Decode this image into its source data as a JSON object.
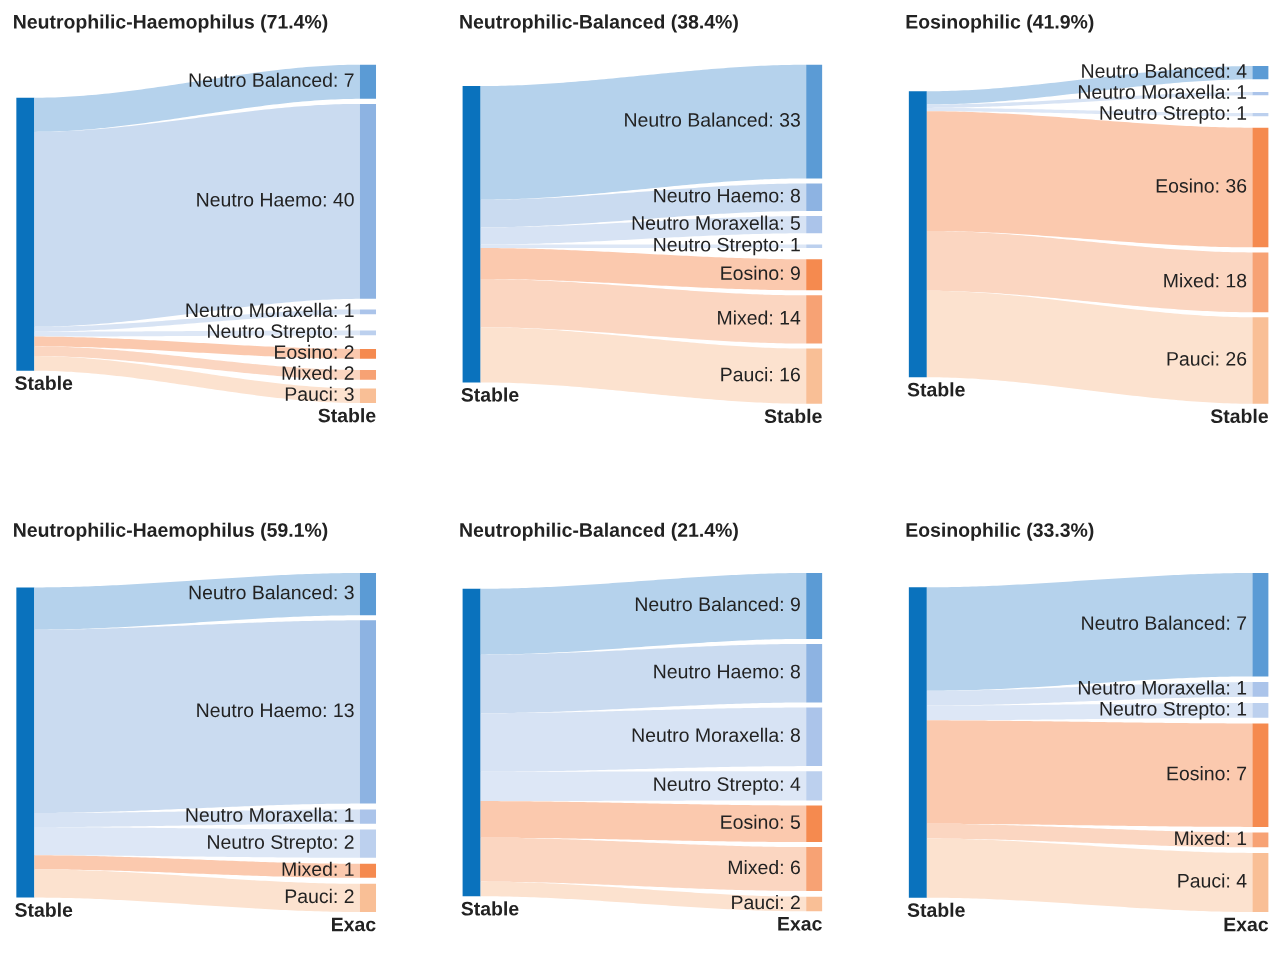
{
  "chart_data": [
    {
      "type": "other",
      "title": "Neutrophilic-Haemophilus (71.4%)",
      "categories": [
        "Neutro Balanced",
        "Neutro Haemo",
        "Neutro Moraxella",
        "Neutro Strepto",
        "Eosino",
        "Mixed",
        "Pauci"
      ],
      "colors": [
        "#5b9bd5",
        "#8db3e2",
        "#abc4ea",
        "#bcd0ee",
        "#f58a4f",
        "#f7a274",
        "#f9bf96"
      ],
      "series": [
        {
          "name": "Stable",
          "color": "#0a72bd",
          "colors": [
            "#b5d2ec",
            "#cadbf0",
            "#d7e3f4",
            "#dde7f6",
            "#fbc9ae",
            "#fbd6c1",
            "#fce2cf"
          ],
          "values": [
            7,
            40,
            1,
            1,
            2,
            2,
            3
          ],
          "value_labels": [
            ": 7",
            ": 40",
            ": 1",
            ": 1",
            ": 2",
            ": 2",
            ": 3"
          ]
        }
      ],
      "annotations": [
        "Stable"
      ]
    },
    {
      "type": "other",
      "title": "Neutrophilic-Balanced (38.4%)",
      "categories": [
        "Neutro Balanced",
        "Neutro Haemo",
        "Neutro Moraxella",
        "Neutro Strepto",
        "Eosino",
        "Mixed",
        "Pauci"
      ],
      "colors": [
        "#5b9bd5",
        "#8db3e2",
        "#abc4ea",
        "#bcd0ee",
        "#f58a4f",
        "#f7a274",
        "#f9bf96"
      ],
      "series": [
        {
          "name": "Stable",
          "color": "#0a72bd",
          "colors": [
            "#b5d2ec",
            "#cadbf0",
            "#d7e3f4",
            "#dde7f6",
            "#fbc9ae",
            "#fbd6c1",
            "#fce2cf"
          ],
          "values": [
            33,
            8,
            5,
            1,
            9,
            14,
            16
          ],
          "value_labels": [
            ": 33",
            ": 8",
            ": 5",
            ": 1",
            ": 9",
            ": 14",
            ": 16"
          ]
        }
      ],
      "annotations": [
        "Stable"
      ]
    },
    {
      "type": "other",
      "title": "Eosinophilic (41.9%)",
      "categories": [
        "Neutro Balanced",
        "Neutro Moraxella",
        "Neutro Strepto",
        "Eosino",
        "Mixed",
        "Pauci"
      ],
      "colors": [
        "#5b9bd5",
        "#abc4ea",
        "#bcd0ee",
        "#f58a4f",
        "#f7a274",
        "#f9bf96"
      ],
      "series": [
        {
          "name": "Stable",
          "color": "#0a72bd",
          "colors": [
            "#b5d2ec",
            "#d7e3f4",
            "#dde7f6",
            "#fbc9ae",
            "#fbd6c1",
            "#fce2cf"
          ],
          "values": [
            4,
            1,
            1,
            36,
            18,
            26
          ],
          "value_labels": [
            ": 4",
            ": 1",
            ": 1",
            ": 36",
            ": 18",
            ": 26"
          ]
        }
      ],
      "annotations": [
        "Stable"
      ]
    },
    {
      "type": "other",
      "title": "Neutrophilic-Haemophilus (59.1%)",
      "categories": [
        "Neutro Balanced",
        "Neutro Haemo",
        "Neutro Moraxella",
        "Neutro Strepto",
        "Mixed",
        "Pauci"
      ],
      "colors": [
        "#5b9bd5",
        "#8db3e2",
        "#abc4ea",
        "#bcd0ee",
        "#f58a4f",
        "#f9bf96"
      ],
      "series": [
        {
          "name": "Stable",
          "color": "#0a72bd",
          "colors": [
            "#b5d2ec",
            "#cadbf0",
            "#d7e3f4",
            "#dde7f6",
            "#fbc9ae",
            "#fce2cf"
          ],
          "values": [
            3,
            13,
            1,
            2,
            1,
            2
          ],
          "value_labels": [
            ": 3",
            ": 13",
            ": 1",
            ": 2",
            ": 1",
            ": 2"
          ]
        }
      ],
      "annotations": [
        "Exac"
      ]
    },
    {
      "type": "other",
      "title": "Neutrophilic-Balanced (21.4%)",
      "categories": [
        "Neutro Balanced",
        "Neutro Haemo",
        "Neutro Moraxella",
        "Neutro Strepto",
        "Eosino",
        "Mixed",
        "Pauci"
      ],
      "colors": [
        "#5b9bd5",
        "#8db3e2",
        "#abc4ea",
        "#bcd0ee",
        "#f58a4f",
        "#f7a274",
        "#f9bf96"
      ],
      "series": [
        {
          "name": "Stable",
          "color": "#0a72bd",
          "colors": [
            "#b5d2ec",
            "#cadbf0",
            "#d7e3f4",
            "#dde7f6",
            "#fbc9ae",
            "#fbd6c1",
            "#fce2cf"
          ],
          "values": [
            9,
            8,
            8,
            4,
            5,
            6,
            2
          ],
          "value_labels": [
            ": 9",
            ": 8",
            ": 8",
            ": 4",
            ": 5",
            ": 6",
            ": 2"
          ]
        }
      ],
      "annotations": [
        "Exac"
      ]
    },
    {
      "type": "other",
      "title": "Eosinophilic (33.3%)",
      "categories": [
        "Neutro Balanced",
        "Neutro Moraxella",
        "Neutro Strepto",
        "Eosino",
        "Mixed",
        "Pauci"
      ],
      "colors": [
        "#5b9bd5",
        "#abc4ea",
        "#bcd0ee",
        "#f58a4f",
        "#f7a274",
        "#f9bf96"
      ],
      "series": [
        {
          "name": "Stable",
          "color": "#0a72bd",
          "colors": [
            "#b5d2ec",
            "#d7e3f4",
            "#dde7f6",
            "#fbc9ae",
            "#fbd6c1",
            "#fce2cf"
          ],
          "values": [
            7,
            1,
            1,
            7,
            1,
            4
          ],
          "value_labels": [
            ": 7",
            ": 1",
            ": 1",
            ": 7",
            ": 1",
            ": 4"
          ]
        }
      ],
      "annotations": [
        "Exac"
      ]
    }
  ]
}
